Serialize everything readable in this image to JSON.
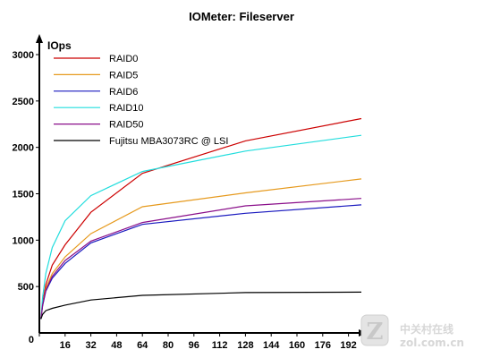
{
  "chart_data": {
    "type": "line",
    "title": "IOMeter: Fileserver",
    "ylabel": "IOps",
    "xlabel": "",
    "xlim": [
      0,
      200
    ],
    "ylim": [
      0,
      3000
    ],
    "x_ticks": [
      0,
      16,
      32,
      48,
      64,
      80,
      96,
      112,
      128,
      144,
      160,
      176,
      192
    ],
    "y_ticks": [
      500,
      1000,
      1500,
      2000,
      2500,
      3000
    ],
    "y_zero_label": "0",
    "grid": false,
    "legend": "top-left",
    "x": [
      1,
      2,
      4,
      8,
      16,
      32,
      64,
      128,
      200
    ],
    "series": [
      {
        "name": "RAID0",
        "color": "#cc0000",
        "values": [
          150,
          320,
          520,
          730,
          950,
          1300,
          1720,
          2070,
          2310
        ]
      },
      {
        "name": "RAID5",
        "color": "#e69a1e",
        "values": [
          150,
          300,
          480,
          640,
          820,
          1070,
          1360,
          1510,
          1660
        ]
      },
      {
        "name": "RAID6",
        "color": "#1a1abf",
        "values": [
          150,
          290,
          450,
          590,
          750,
          970,
          1170,
          1290,
          1380
        ]
      },
      {
        "name": "RAID10",
        "color": "#22dddd",
        "values": [
          150,
          380,
          640,
          920,
          1210,
          1480,
          1740,
          1960,
          2130
        ]
      },
      {
        "name": "RAID50",
        "color": "#8a0f8a",
        "values": [
          150,
          300,
          460,
          610,
          780,
          990,
          1190,
          1370,
          1450
        ]
      },
      {
        "name": "Fujitsu MBA3073RC @ LSI",
        "color": "#000000",
        "values": [
          150,
          200,
          240,
          265,
          300,
          355,
          405,
          435,
          440
        ]
      }
    ]
  },
  "watermark": {
    "logo_text": "Z",
    "cn_text": "中关村在线",
    "en_text": "zol.com.cn",
    "color": "#d7d7d7"
  }
}
